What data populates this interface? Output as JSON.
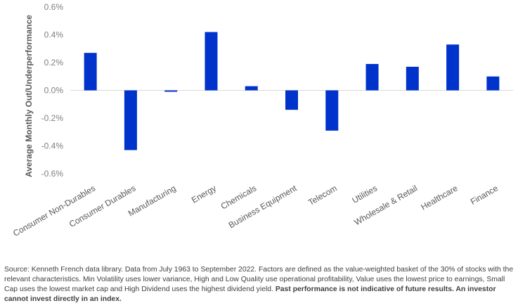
{
  "chart_data": {
    "type": "bar",
    "title": "",
    "xlabel": "",
    "ylabel": "Average Monthly Out/Underperformance",
    "categories": [
      "Consumer Non-Durables",
      "Consumer Durables",
      "Manufacturing",
      "Energy",
      "Chemicals",
      "Business Equipment",
      "Telecom",
      "Utilities",
      "Wholesale & Retail",
      "Healthcare",
      "Finance"
    ],
    "values": [
      0.27,
      -0.43,
      -0.01,
      0.42,
      0.03,
      -0.14,
      -0.29,
      0.19,
      0.17,
      0.33,
      0.1
    ],
    "ylim": [
      -0.6,
      0.6
    ],
    "yticks": [
      0.6,
      0.4,
      0.2,
      0.0,
      -0.2,
      -0.4,
      -0.6
    ],
    "ytick_labels": [
      "0.6%",
      "0.4%",
      "0.2%",
      "0.0%",
      "-0.2%",
      "-0.4%",
      "-0.6%"
    ],
    "grid": false,
    "legend": "none",
    "bar_color": "#0033cc"
  },
  "footer": {
    "source_text": "Source: Kenneth French data library. Data from July 1963 to September 2022. Factors are defined as the value-weighted basket of the 30% of stocks with the relevant characteristics. Min Volatility uses lower variance, High and Low Quality use operational profitability, Value uses the lowest price to earnings, Small Cap uses the lowest market cap and High Dividend uses the highest dividend yield. ",
    "disclaimer": "Past performance is not indicative of future results. An investor cannot invest directly in an index."
  }
}
